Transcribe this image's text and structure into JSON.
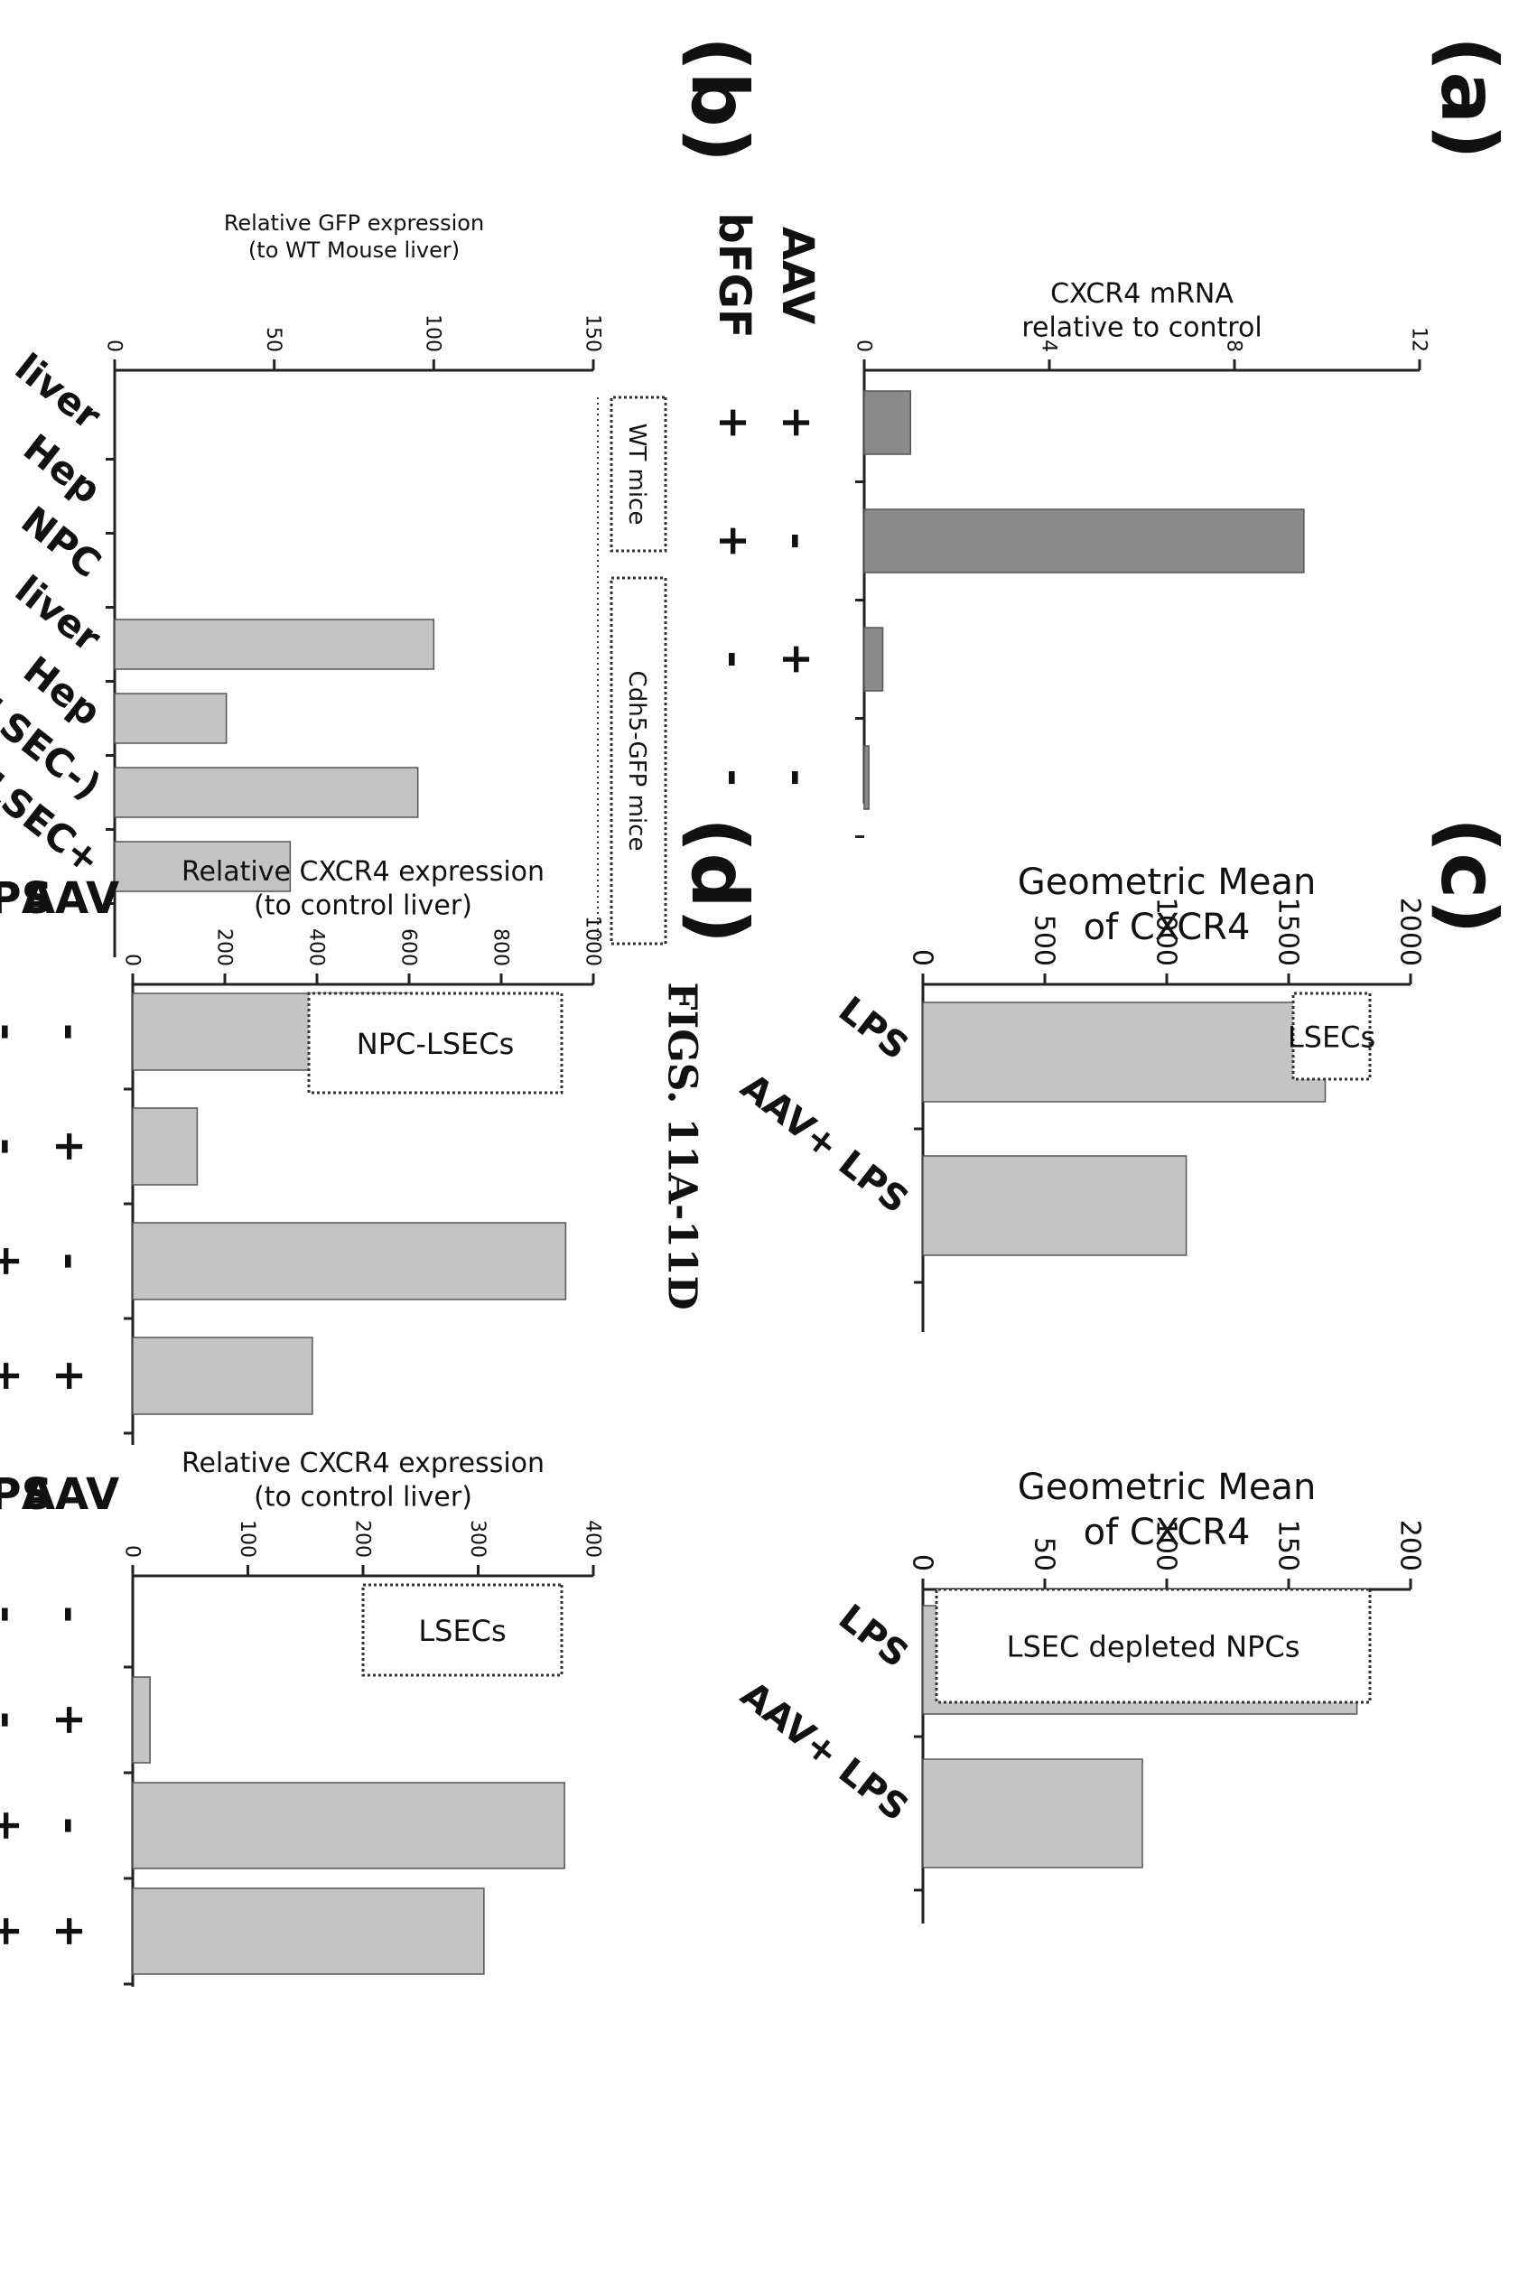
{
  "figure_title": "FIGS. 11A-11D",
  "chart_data": [
    {
      "panel": "(a)",
      "type": "bar",
      "ylabel_lines": [
        "CXCR4 mRNA",
        "relative to control"
      ],
      "ylim": [
        0,
        12
      ],
      "yticks": [
        0,
        4,
        8,
        12
      ],
      "values": [
        1.0,
        9.5,
        0.4,
        0.1
      ],
      "conditions": [
        {
          "label": "AAV",
          "signs": [
            "+",
            "-",
            "+",
            "-"
          ]
        },
        {
          "label": "bFGF",
          "signs": [
            "+",
            "+",
            "-",
            "-"
          ]
        }
      ],
      "bar_color": "#8a8a8a"
    },
    {
      "panel": "(b)",
      "type": "bar",
      "ylabel_lines": [
        "Relative GFP expression",
        "(to WT Mouse liver)"
      ],
      "ylim": [
        0,
        150
      ],
      "yticks": [
        0,
        50,
        100,
        150
      ],
      "categories": [
        "liver",
        "Hep",
        "NPC",
        "liver",
        "Hep",
        "NPC (LSEC-)",
        "LSEC+"
      ],
      "values": [
        0,
        0,
        0,
        100,
        35,
        95,
        55
      ],
      "groups": [
        "WT mice",
        "Cdh5-GFP mice"
      ],
      "bar_color": "#c4c4c4"
    },
    {
      "panel": "(c)",
      "type": "bar",
      "ylabel_lines": [
        "Geometric Mean",
        "of CXCR4"
      ],
      "ylim": [
        0,
        2000
      ],
      "yticks": [
        0,
        500,
        1000,
        1500,
        2000
      ],
      "categories": [
        "LPS",
        "AAV+ LPS"
      ],
      "values": [
        1650,
        1080
      ],
      "box_label": "LSECs",
      "bar_color": "#c4c4c4"
    },
    {
      "panel": "",
      "type": "bar",
      "ylabel_lines": [
        "Geometric Mean",
        "of CXCR4"
      ],
      "ylim": [
        0,
        200
      ],
      "yticks": [
        0,
        50,
        100,
        150,
        200
      ],
      "categories": [
        "LPS",
        "AAV+ LPS"
      ],
      "values": [
        178,
        90
      ],
      "box_label": "LSEC depleted NPCs",
      "bar_color": "#c4c4c4"
    },
    {
      "panel": "(d)",
      "type": "bar",
      "ylabel_lines": [
        "Relative CXCR4 expression",
        "(to control liver)"
      ],
      "ylim": [
        0,
        1000
      ],
      "yticks": [
        0,
        200,
        400,
        600,
        800,
        1000
      ],
      "values": [
        600,
        140,
        940,
        390
      ],
      "conditions": [
        {
          "label": "AAV",
          "signs": [
            "-",
            "+",
            "-",
            "+"
          ]
        },
        {
          "label": "LPS",
          "signs": [
            "-",
            "-",
            "+",
            "+"
          ]
        }
      ],
      "box_label": "NPC-LSECs",
      "bar_color": "#c4c4c4"
    },
    {
      "panel": "",
      "type": "bar",
      "ylabel_lines": [
        "Relative CXCR4 expression",
        "(to control liver)"
      ],
      "ylim": [
        0,
        400
      ],
      "yticks": [
        0,
        100,
        200,
        300,
        400
      ],
      "values": [
        0,
        15,
        375,
        305
      ],
      "conditions": [
        {
          "label": "AAV",
          "signs": [
            "-",
            "+",
            "-",
            "+"
          ]
        },
        {
          "label": "LPS",
          "signs": [
            "-",
            "-",
            "+",
            "+"
          ]
        }
      ],
      "box_label": "LSECs",
      "bar_color": "#c4c4c4"
    }
  ]
}
